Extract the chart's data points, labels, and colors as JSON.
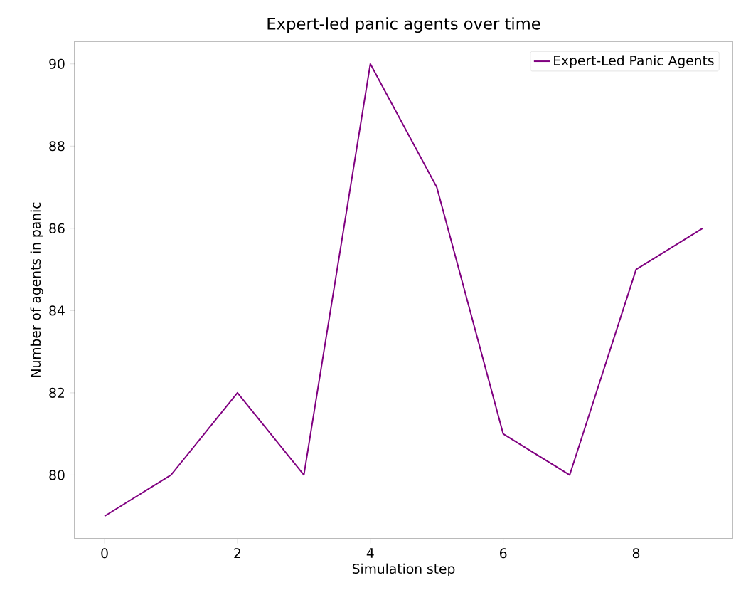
{
  "chart_data": {
    "type": "line",
    "title": "Expert-led panic agents over time",
    "xlabel": "Simulation step",
    "ylabel": "Number of agents in panic",
    "x": [
      0,
      1,
      2,
      3,
      4,
      5,
      6,
      7,
      8,
      9
    ],
    "series": [
      {
        "name": "Expert-Led Panic Agents",
        "color": "#800080",
        "values": [
          79,
          80,
          82,
          80,
          90,
          87,
          81,
          80,
          85,
          86
        ]
      }
    ],
    "xlim": [
      -0.45,
      9.45
    ],
    "ylim": [
      78.45,
      90.55
    ],
    "xticks": [
      0,
      2,
      4,
      6,
      8
    ],
    "yticks": [
      80,
      82,
      84,
      86,
      88,
      90
    ],
    "legend": "top right",
    "marker": "none",
    "line_style": "solid",
    "grid": false
  }
}
